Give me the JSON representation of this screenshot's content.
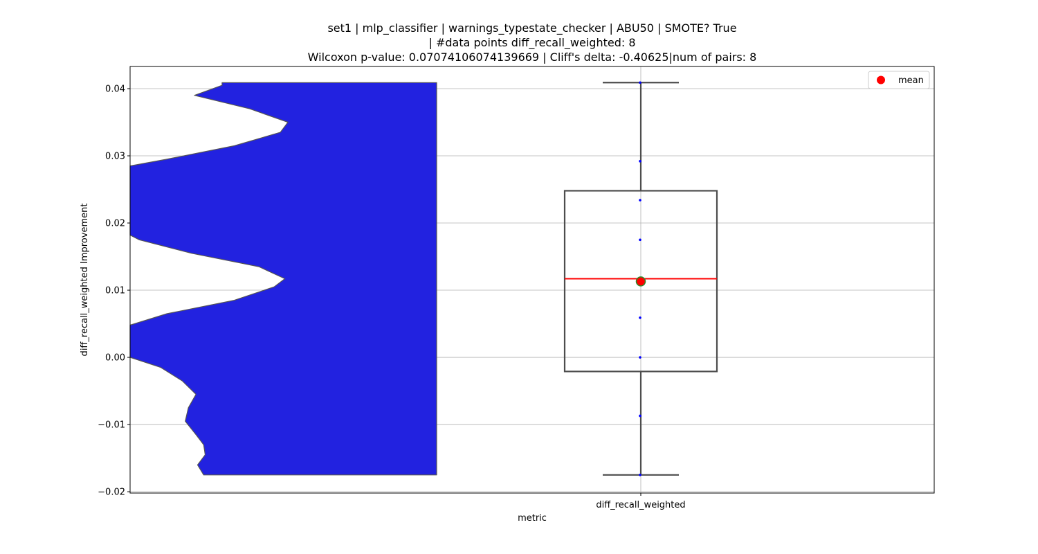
{
  "colors": {
    "violin_fill": "#2222e0",
    "violin_edge": "#555555",
    "box_edge": "#4d4d4d",
    "median": "#ff0000",
    "mean_marker": "#ff0000",
    "mean_marker_edge": "#2a8a2a",
    "points": "#0000ff",
    "grid": "#b0b0b0"
  },
  "chart_data": {
    "type": "violin+box",
    "title_lines": [
      "set1 | mlp_classifier | warnings_typestate_checker | ABU50 | SMOTE? True",
      "| #data points diff_recall_weighted: 8",
      "Wilcoxon p-value: 0.07074106074139669 | Cliff's delta: -0.40625|num of pairs: 8"
    ],
    "xlabel": "metric",
    "ylabel": "diff_recall_weighted Improvement",
    "categories": [
      "diff_recall_weighted"
    ],
    "ylim": [
      -0.0202,
      0.0433
    ],
    "yticks": [
      -0.02,
      -0.01,
      0.0,
      0.01,
      0.02,
      0.03,
      0.04
    ],
    "ytick_labels": [
      "−0.02",
      "−0.01",
      "0.00",
      "0.01",
      "0.02",
      "0.03",
      "0.04"
    ],
    "grid": true,
    "legend": {
      "placement": "top-right",
      "entries": [
        "mean"
      ]
    },
    "points": [
      -0.0175,
      -0.0087,
      0.0,
      0.0059,
      0.0175,
      0.0234,
      0.0292,
      0.0409
    ],
    "box": {
      "whisker_low": -0.0175,
      "q1": -0.0021,
      "median": 0.0117,
      "q3": 0.0248,
      "whisker_high": 0.0409,
      "mean": 0.0113
    },
    "violin_profile": [
      [
        -0.0175,
        0.24
      ],
      [
        -0.016,
        0.22
      ],
      [
        -0.0145,
        0.245
      ],
      [
        -0.013,
        0.24
      ],
      [
        -0.0115,
        0.215
      ],
      [
        -0.0095,
        0.18
      ],
      [
        -0.0075,
        0.19
      ],
      [
        -0.0055,
        0.215
      ],
      [
        -0.0035,
        0.17
      ],
      [
        -0.0015,
        0.1
      ],
      [
        0.0,
        0.0
      ],
      [
        0.002,
        0.0
      ],
      [
        0.0048,
        0.0
      ],
      [
        0.0065,
        0.12
      ],
      [
        0.0085,
        0.34
      ],
      [
        0.0105,
        0.47
      ],
      [
        0.0117,
        0.505
      ],
      [
        0.0135,
        0.42
      ],
      [
        0.0155,
        0.2
      ],
      [
        0.0175,
        0.03
      ],
      [
        0.0182,
        0.0
      ],
      [
        0.025,
        0.0
      ],
      [
        0.0285,
        0.0
      ],
      [
        0.0295,
        0.12
      ],
      [
        0.0315,
        0.34
      ],
      [
        0.0335,
        0.49
      ],
      [
        0.035,
        0.515
      ],
      [
        0.037,
        0.39
      ],
      [
        0.039,
        0.21
      ],
      [
        0.0405,
        0.3
      ],
      [
        0.0409,
        0.3
      ]
    ]
  }
}
